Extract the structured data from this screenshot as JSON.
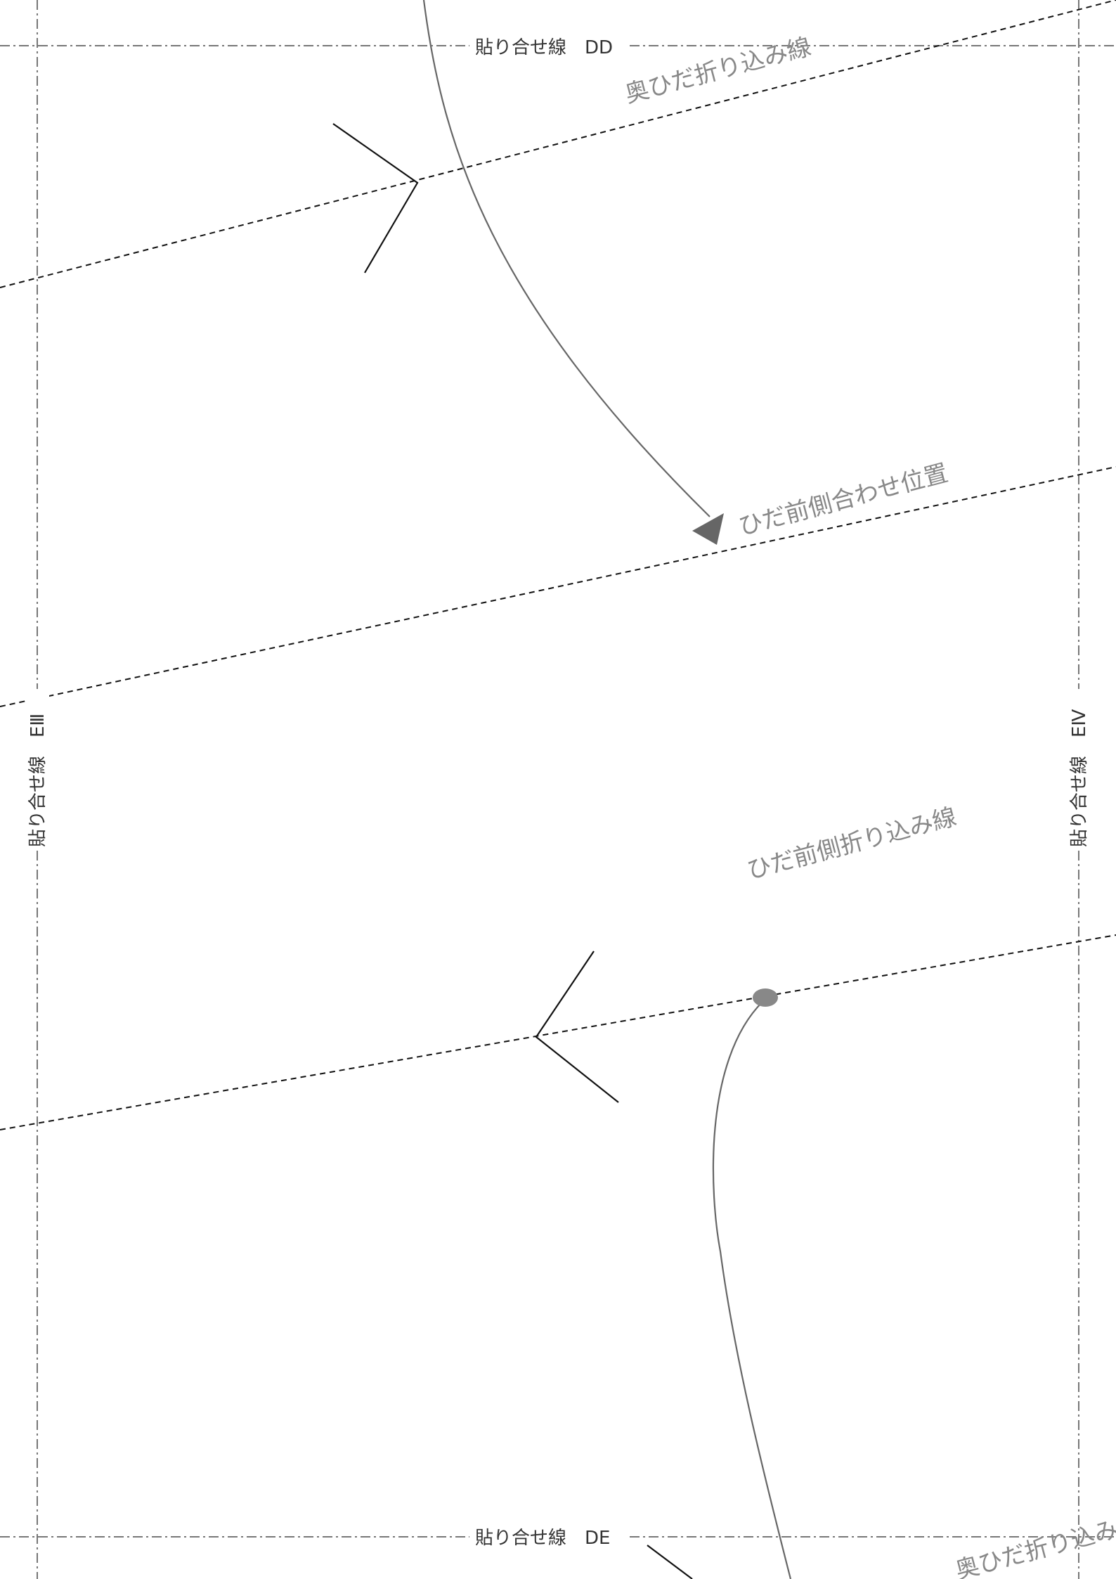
{
  "page": {
    "join_labels": {
      "top": "貼り合せ線　DD",
      "bottom": "貼り合せ線　DE",
      "left": "貼り合せ線　EⅢ",
      "right": "貼り合せ線　EⅣ"
    },
    "fold_labels": {
      "back_pleat_top": "奥ひだ折り込み線",
      "front_pleat_position": "ひだ前側合わせ位置",
      "front_pleat_fold": "ひだ前側折り込み線",
      "back_pleat_bottom": "奥ひだ折り込み線"
    },
    "colors": {
      "border": "#777777",
      "fold_line": "#111111",
      "arrow": "#666666",
      "marker": "#111111",
      "text_gray": "#888888",
      "text_dark": "#333333"
    }
  }
}
